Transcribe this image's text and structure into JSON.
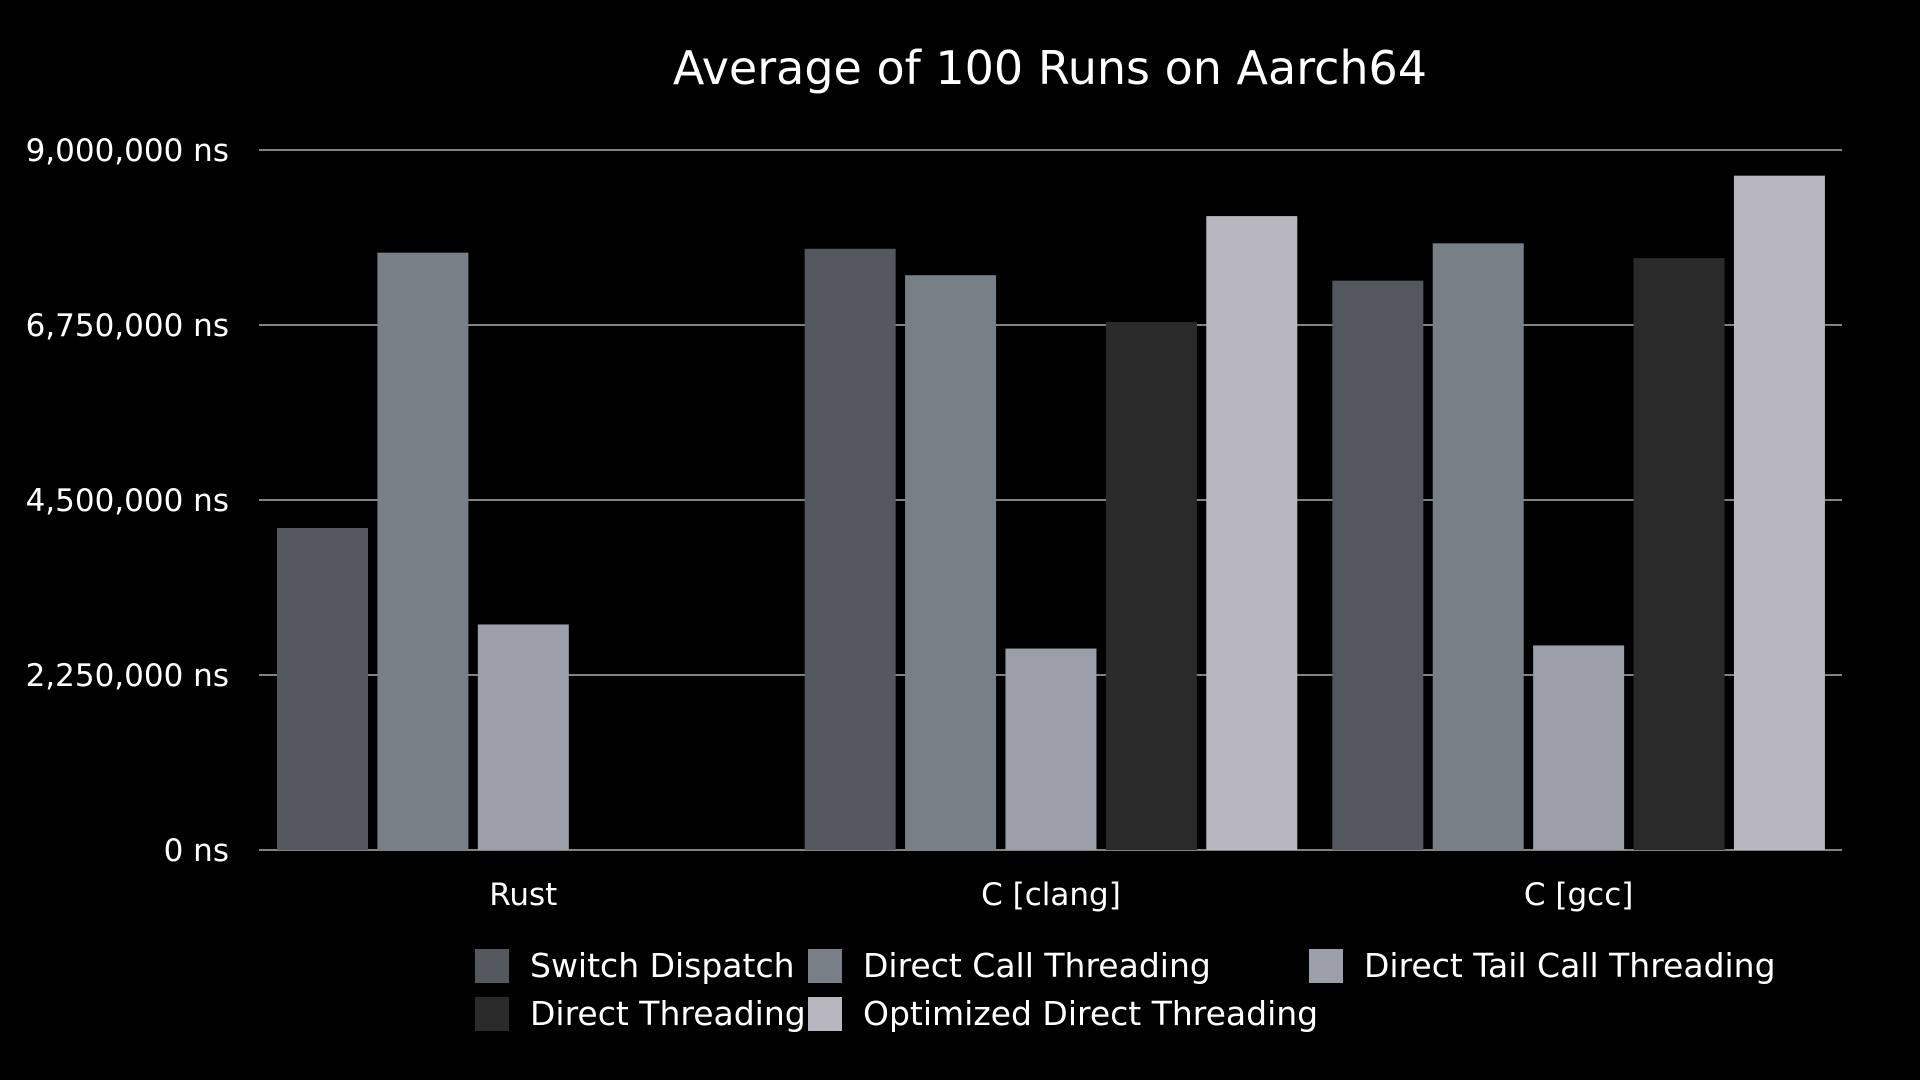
{
  "chart_data": {
    "type": "bar",
    "title": "Average of 100 Runs on Aarch64",
    "xlabel": "",
    "ylabel": "",
    "ylim": [
      0,
      9000000
    ],
    "yticks": [
      0,
      2250000,
      4500000,
      6750000,
      9000000
    ],
    "ytick_labels": [
      "0 ns",
      "2,250,000 ns",
      "4,500,000 ns",
      "6,750,000 ns",
      "9,000,000 ns"
    ],
    "categories": [
      "Rust",
      "C [clang]",
      "C [gcc]"
    ],
    "grid": true,
    "legend_position": "bottom",
    "series": [
      {
        "name": "Switch Dispatch",
        "color": "#53575e",
        "values": [
          4140000,
          7730000,
          7320000
        ]
      },
      {
        "name": "Direct Call Threading",
        "color": "#787f86",
        "values": [
          7680000,
          7390000,
          7800000
        ]
      },
      {
        "name": "Direct Tail Call Threading",
        "color": "#9a9fa9",
        "values": [
          2900000,
          2590000,
          2630000
        ]
      },
      {
        "name": "Direct Threading",
        "color": "#2a2a2a",
        "values": [
          null,
          6790000,
          7610000
        ]
      },
      {
        "name": "Optimized Direct Threading",
        "color": "#b8b7c0",
        "values": [
          null,
          8150000,
          8670000
        ]
      }
    ]
  }
}
